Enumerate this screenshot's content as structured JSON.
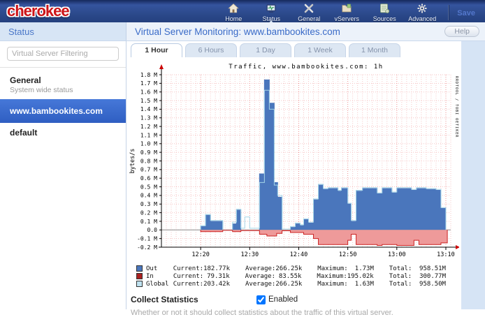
{
  "header": {
    "logo": "cherokee",
    "nav": [
      {
        "label": "Home",
        "icon": "home-icon",
        "active": false
      },
      {
        "label": "Status",
        "icon": "status-icon",
        "active": true
      },
      {
        "label": "General",
        "icon": "tools-icon",
        "active": false
      },
      {
        "label": "vServers",
        "icon": "folder-icon",
        "active": false
      },
      {
        "label": "Sources",
        "icon": "server-icon",
        "active": false
      },
      {
        "label": "Advanced",
        "icon": "gear-icon",
        "active": false
      }
    ],
    "save_label": "Save"
  },
  "sidebar": {
    "title": "Status",
    "filter_placeholder": "Virtual Server Filtering",
    "items": [
      {
        "label": "General",
        "sublabel": "System wide status",
        "selected": false
      },
      {
        "label": "www.bambookites.com",
        "sublabel": "",
        "selected": true
      },
      {
        "label": "default",
        "sublabel": "",
        "selected": false
      }
    ]
  },
  "main": {
    "title": "Virtual Server Monitoring: www.bambookites.com",
    "help_label": "Help",
    "tabs": [
      {
        "label": "1 Hour",
        "active": true
      },
      {
        "label": "6 Hours",
        "active": false
      },
      {
        "label": "1 Day",
        "active": false
      },
      {
        "label": "1 Week",
        "active": false
      },
      {
        "label": "1 Month",
        "active": false
      }
    ]
  },
  "collect": {
    "label": "Collect Statistics",
    "enabled": true,
    "checkbox_label": "Enabled",
    "description": "Whether or not it should collect statistics about the traffic of this virtual server."
  },
  "chart_data": {
    "type": "area",
    "title": "Traffic, www.bambookites.com: 1h",
    "ylabel": "bytes/s",
    "watermark": "RRDTOOL / TOBI OETIKER",
    "ylim": [
      -0.2,
      1.8
    ],
    "y_tick_step": 0.1,
    "y_unit": "M",
    "grid": true,
    "x_domain_minutes": [
      0,
      59
    ],
    "x_ticks": [
      {
        "t": 8,
        "label": "12:20"
      },
      {
        "t": 18,
        "label": "12:30"
      },
      {
        "t": 28,
        "label": "12:40"
      },
      {
        "t": 38,
        "label": "12:50"
      },
      {
        "t": 48,
        "label": "13:00"
      },
      {
        "t": 58,
        "label": "13:10"
      }
    ],
    "series": [
      {
        "name": "Out",
        "style": "area",
        "fill": "#4a76bc",
        "line": "#4a76bc",
        "steps": [
          [
            0,
            0
          ],
          [
            8,
            0.04
          ],
          [
            9,
            0.17
          ],
          [
            10,
            0.1
          ],
          [
            12.5,
            0
          ],
          [
            14.5,
            0.07
          ],
          [
            15.3,
            0.23
          ],
          [
            16.2,
            0
          ],
          [
            20,
            0.65
          ],
          [
            21,
            1.74
          ],
          [
            22,
            1.47
          ],
          [
            23,
            0.55
          ],
          [
            23.7,
            0.38
          ],
          [
            24.6,
            0
          ],
          [
            26.3,
            0.03
          ],
          [
            27.3,
            0.07
          ],
          [
            28.3,
            0.05
          ],
          [
            29,
            0.12
          ],
          [
            30,
            0.08
          ],
          [
            31,
            0.35
          ],
          [
            32,
            0.52
          ],
          [
            33,
            0.47
          ],
          [
            34,
            0.48
          ],
          [
            36,
            0.45
          ],
          [
            36.7,
            0.48
          ],
          [
            38,
            0.3
          ],
          [
            38.7,
            0.1
          ],
          [
            39.7,
            0.45
          ],
          [
            41,
            0.48
          ],
          [
            44,
            0.42
          ],
          [
            45,
            0.48
          ],
          [
            47,
            0.43
          ],
          [
            48,
            0.48
          ],
          [
            51,
            0.46
          ],
          [
            52,
            0.48
          ],
          [
            54,
            0.47
          ],
          [
            56,
            0.46
          ],
          [
            57,
            0.25
          ],
          [
            58,
            0
          ]
        ]
      },
      {
        "name": "In",
        "style": "area",
        "fill": "#ee9a9a",
        "line": "#cc2222",
        "steps": [
          [
            0,
            0
          ],
          [
            8,
            -0.02
          ],
          [
            12.5,
            -0.005
          ],
          [
            14.5,
            -0.02
          ],
          [
            16.2,
            -0.008
          ],
          [
            20,
            -0.05
          ],
          [
            21.5,
            -0.07
          ],
          [
            23.5,
            -0.04
          ],
          [
            24.6,
            -0.01
          ],
          [
            26.3,
            -0.03
          ],
          [
            29,
            -0.05
          ],
          [
            31,
            -0.1
          ],
          [
            32,
            -0.17
          ],
          [
            38,
            -0.12
          ],
          [
            38.7,
            -0.05
          ],
          [
            39.7,
            -0.17
          ],
          [
            44,
            -0.18
          ],
          [
            45,
            -0.17
          ],
          [
            48,
            -0.18
          ],
          [
            51.5,
            -0.12
          ],
          [
            52.5,
            -0.17
          ],
          [
            57,
            -0.15
          ],
          [
            58.3,
            0
          ]
        ]
      },
      {
        "name": "Global",
        "style": "line",
        "fill": null,
        "line": "#a5d6e8",
        "steps": [
          [
            0,
            0
          ],
          [
            8,
            0.05
          ],
          [
            9,
            0.18
          ],
          [
            10,
            0.11
          ],
          [
            12.5,
            0
          ],
          [
            14.5,
            0.09
          ],
          [
            15.3,
            0.24
          ],
          [
            16.2,
            0.02
          ],
          [
            17,
            0.15
          ],
          [
            18,
            0.02
          ],
          [
            20,
            0.55
          ],
          [
            21,
            1.62
          ],
          [
            22,
            1.4
          ],
          [
            23,
            0.52
          ],
          [
            23.7,
            0.4
          ],
          [
            24.6,
            0.01
          ],
          [
            26.3,
            0.04
          ],
          [
            27.3,
            0.08
          ],
          [
            28.3,
            0.06
          ],
          [
            29,
            0.13
          ],
          [
            30,
            0.09
          ],
          [
            31,
            0.36
          ],
          [
            32,
            0.53
          ],
          [
            33,
            0.48
          ],
          [
            34,
            0.49
          ],
          [
            36,
            0.46
          ],
          [
            36.7,
            0.49
          ],
          [
            38,
            0.31
          ],
          [
            38.7,
            0.11
          ],
          [
            39.7,
            0.46
          ],
          [
            41,
            0.49
          ],
          [
            44,
            0.43
          ],
          [
            45,
            0.49
          ],
          [
            47,
            0.44
          ],
          [
            48,
            0.49
          ],
          [
            51,
            0.47
          ],
          [
            52,
            0.49
          ],
          [
            54,
            0.48
          ],
          [
            56,
            0.47
          ],
          [
            57,
            0.26
          ],
          [
            58,
            0
          ]
        ]
      }
    ],
    "legend": {
      "columns": [
        "Current",
        "Average",
        "Maximum",
        "Total"
      ],
      "rows": [
        {
          "name": "Out",
          "swatch": "#4a76bc",
          "values": [
            "182.77k",
            "266.25k",
            "1.73M",
            "958.51M"
          ]
        },
        {
          "name": "In",
          "swatch": "#aa2020",
          "values": [
            "79.31k",
            "83.55k",
            "195.02k",
            "300.77M"
          ]
        },
        {
          "name": "Global",
          "swatch": "#bfe2f0",
          "values": [
            "203.42k",
            "266.25k",
            "1.63M",
            "958.50M"
          ]
        }
      ]
    },
    "colors": {
      "grid_minor": "#f6c6c6",
      "grid_major": "#ee9090",
      "zero_line": "#8c8c8c",
      "axis_arrow": "#cc0000"
    }
  }
}
